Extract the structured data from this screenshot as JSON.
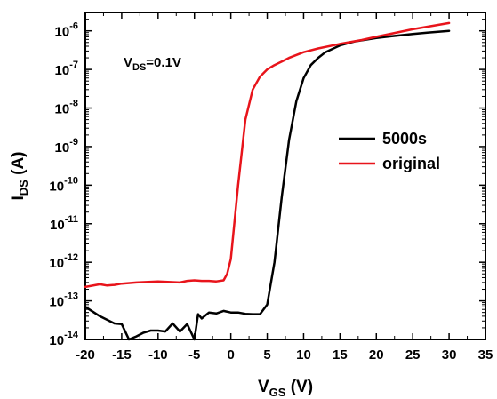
{
  "chart_data": {
    "type": "line",
    "xlabel": {
      "main": "V",
      "sub": "GS",
      "rest": " (V)"
    },
    "ylabel": {
      "main": "I",
      "sub": "DS",
      "rest": " (A)"
    },
    "annotation": {
      "main": "V",
      "sub": "DS",
      "rest": "=0.1V"
    },
    "y_scale": "log",
    "xlim": [
      -20,
      35
    ],
    "ylim": [
      1e-14,
      3e-06
    ],
    "x_ticks": [
      -20,
      -15,
      -10,
      -5,
      0,
      5,
      10,
      15,
      20,
      25,
      30,
      35
    ],
    "x_tick_labels": [
      "-20",
      "-15",
      "-10",
      "-5",
      "0",
      "5",
      "10",
      "15",
      "20",
      "25",
      "30",
      "35"
    ],
    "y_ticks": [
      1e-14,
      1e-13,
      1e-12,
      1e-11,
      1e-10,
      1e-09,
      1e-08,
      1e-07,
      1e-06
    ],
    "y_tick_labels": [
      {
        "base": "10",
        "exp": "-14"
      },
      {
        "base": "10",
        "exp": "-13"
      },
      {
        "base": "10",
        "exp": "-12"
      },
      {
        "base": "10",
        "exp": "-11"
      },
      {
        "base": "10",
        "exp": "-10"
      },
      {
        "base": "10",
        "exp": "-9"
      },
      {
        "base": "10",
        "exp": "-8"
      },
      {
        "base": "10",
        "exp": "-7"
      },
      {
        "base": "10",
        "exp": "-6"
      }
    ],
    "grid": false,
    "legend_position": "right-middle",
    "series": [
      {
        "name": "5000s",
        "color": "#000000",
        "x": [
          -20,
          -18,
          -16,
          -15,
          -14,
          -13,
          -12,
          -11,
          -10,
          -9,
          -8,
          -7,
          -6,
          -5,
          -4.5,
          -4,
          -3,
          -2,
          -1,
          0,
          1,
          2,
          3,
          4,
          5,
          6,
          7,
          8,
          9,
          10,
          11,
          12,
          13,
          15,
          17,
          20,
          22,
          25,
          27,
          30
        ],
        "y": [
          7e-14,
          4e-14,
          2.6e-14,
          2.5e-14,
          1e-14,
          1.2e-14,
          1.5e-14,
          1.7e-14,
          1.7e-14,
          1.6e-14,
          2.6e-14,
          1.6e-14,
          2.5e-14,
          1e-14,
          4.5e-14,
          3.5e-14,
          5e-14,
          4.7e-14,
          5.5e-14,
          5e-14,
          5e-14,
          4.6e-14,
          4.5e-14,
          4.5e-14,
          8e-14,
          1e-12,
          5e-11,
          1.5e-09,
          1.5e-08,
          6e-08,
          1.3e-07,
          2e-07,
          2.8e-07,
          4.2e-07,
          5.3e-07,
          6.5e-07,
          7.2e-07,
          8.3e-07,
          9e-07,
          1e-06
        ]
      },
      {
        "name": "original",
        "color": "#e8141b",
        "x": [
          -20,
          -18,
          -17,
          -16,
          -15,
          -13,
          -10,
          -7,
          -6,
          -5,
          -4,
          -3,
          -2,
          -1,
          -0.5,
          0,
          1,
          2,
          3,
          4,
          5,
          6,
          7,
          8,
          10,
          12,
          15,
          18,
          20,
          25,
          30
        ],
        "y": [
          2.3e-13,
          2.7e-13,
          2.5e-13,
          2.6e-13,
          2.8e-13,
          3e-13,
          3.2e-13,
          3e-13,
          3.3e-13,
          3.4e-13,
          3.3e-13,
          3.3e-13,
          3.2e-13,
          3.4e-13,
          5e-13,
          1.2e-12,
          1e-10,
          5e-09,
          3e-08,
          6.5e-08,
          1e-07,
          1.3e-07,
          1.6e-07,
          2e-07,
          2.8e-07,
          3.5e-07,
          4.6e-07,
          5.8e-07,
          7e-07,
          1.1e-06,
          1.6e-06
        ]
      }
    ]
  }
}
